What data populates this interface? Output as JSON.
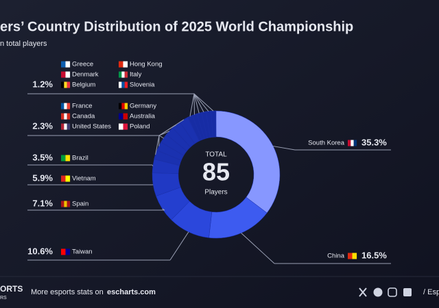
{
  "header": {
    "title": "ers’ Country Distribution of 2025 World Championship",
    "subtitle": "n total players"
  },
  "chart_data": {
    "type": "donut",
    "center": {
      "top": "TOTAL",
      "value": 85,
      "bottom": "Players"
    },
    "slices": [
      {
        "names": [
          "South Korea"
        ],
        "value": 35.3,
        "value_label": "35.3%",
        "color": "#8797ff"
      },
      {
        "names": [
          "China"
        ],
        "value": 16.5,
        "value_label": "16.5%",
        "color": "#3d5bf0"
      },
      {
        "names": [
          "Taiwan"
        ],
        "value": 10.6,
        "value_label": "10.6%",
        "color": "#2b47dc"
      },
      {
        "names": [
          "Spain"
        ],
        "value": 7.1,
        "value_label": "7.1%",
        "color": "#243fcf"
      },
      {
        "names": [
          "Vietnam"
        ],
        "value": 5.9,
        "value_label": "5.9%",
        "color": "#2039c4"
      },
      {
        "names": [
          "Brazil"
        ],
        "value": 3.5,
        "value_label": "3.5%",
        "color": "#1d35bb"
      },
      {
        "names": [
          "France",
          "Canada",
          "United States",
          "Germany",
          "Australia",
          "Poland"
        ],
        "value": 2.3,
        "value_label": "2.3%",
        "color": "#1a31b0"
      },
      {
        "names": [
          "Greece",
          "Denmark",
          "Belgium",
          "Hong Kong",
          "Italy",
          "Slovenia"
        ],
        "value": 1.2,
        "value_label": "1.2%",
        "color": "#172ca4"
      }
    ]
  },
  "footer": {
    "brand": "ORTS",
    "brand_sub": "RS",
    "text": "More esports stats on",
    "link": "escharts.com",
    "right": "/ Esp"
  }
}
